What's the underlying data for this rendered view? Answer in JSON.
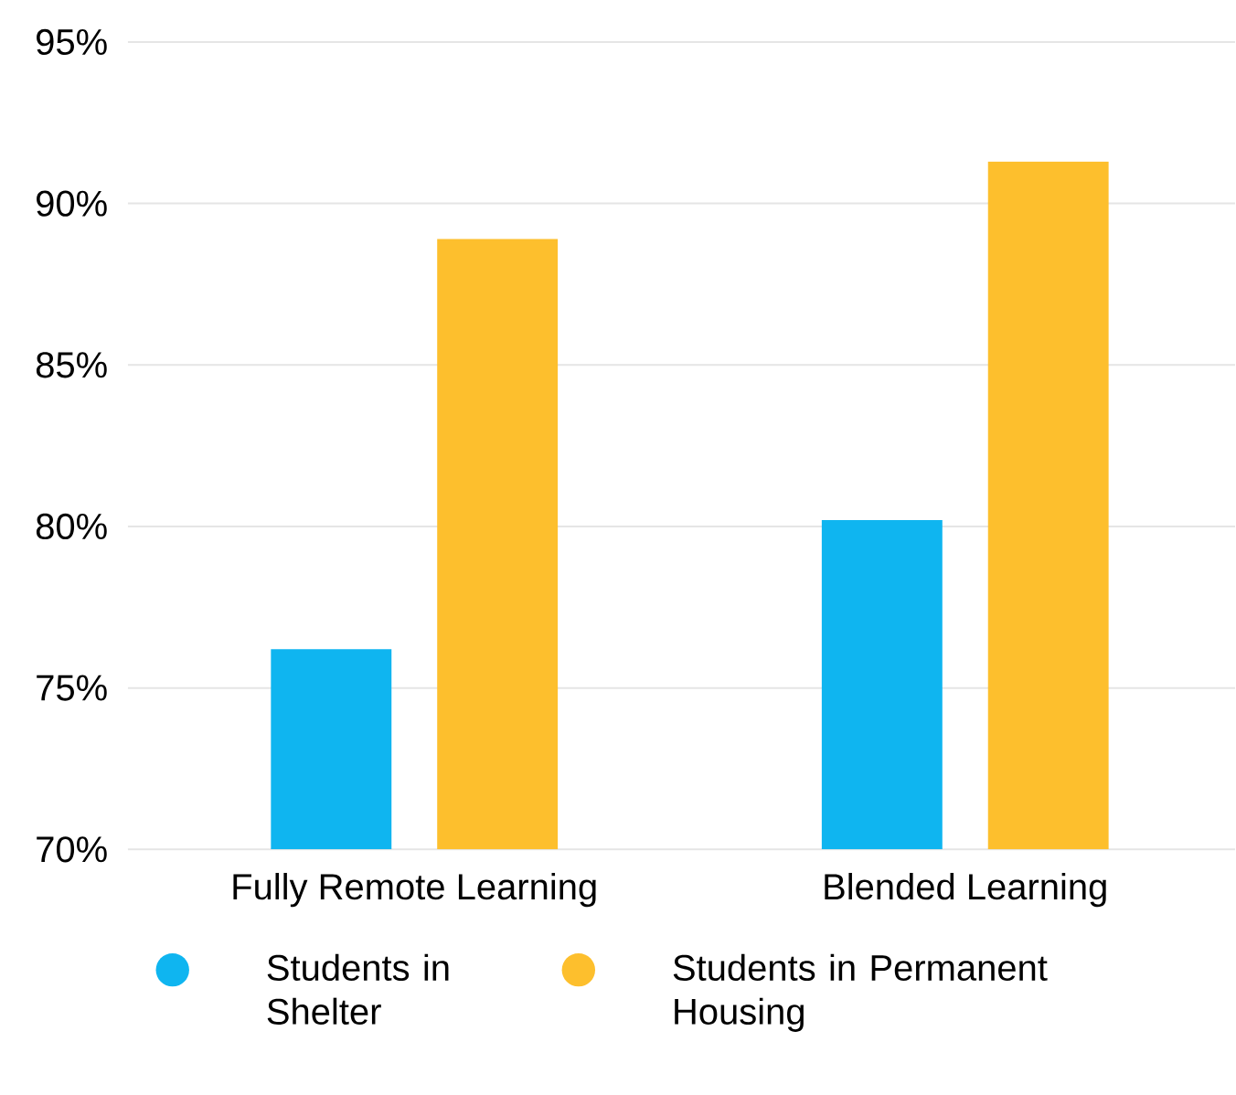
{
  "chart_data": {
    "type": "bar",
    "categories": [
      "Fully Remote Learning",
      "Blended Learning"
    ],
    "series": [
      {
        "name": "Students in Shelter",
        "color": "#0fb5f0",
        "values": [
          76.2,
          80.2
        ]
      },
      {
        "name": "Students in Permanent Housing",
        "color": "#fdbf2d",
        "values": [
          88.9,
          91.3
        ]
      }
    ],
    "ylim": [
      70,
      95
    ],
    "yticks": [
      {
        "value": 70,
        "label": "70%"
      },
      {
        "value": 75,
        "label": "75%"
      },
      {
        "value": 80,
        "label": "80%"
      },
      {
        "value": 85,
        "label": "85%"
      },
      {
        "value": 90,
        "label": "90%"
      },
      {
        "value": 95,
        "label": "95%"
      }
    ],
    "grid": "y",
    "legend": "bottom left"
  }
}
